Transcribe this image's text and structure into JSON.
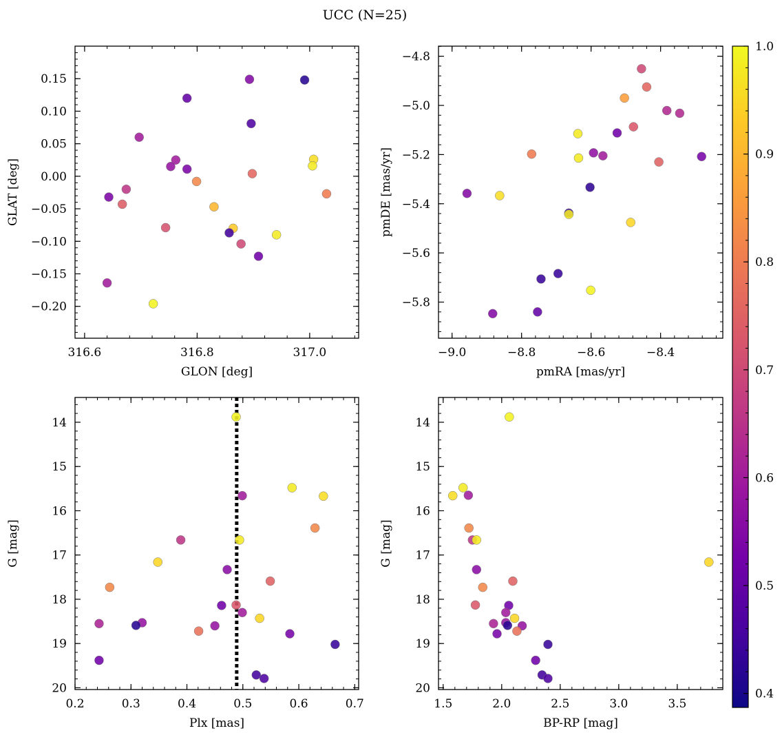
{
  "figure": {
    "title": "UCC (N=25)"
  },
  "colorbar": {
    "vmin": 0.387,
    "vmax": 1.0,
    "ticks": [
      "0.4",
      "0.5",
      "0.6",
      "0.7",
      "0.8",
      "0.9",
      "1.0"
    ],
    "colormap": "plasma",
    "colormap_stops": [
      "#0d0887",
      "#46039f",
      "#7201a8",
      "#9c179e",
      "#bd3786",
      "#d8576b",
      "#ed7953",
      "#fb9f3a",
      "#fdca26",
      "#f0f921"
    ]
  },
  "chart_data": [
    {
      "type": "scatter",
      "xlabel": "GLON [deg]",
      "ylabel": "GLAT [deg]",
      "xlim": [
        316.583,
        317.087
      ],
      "ylim": [
        -0.249,
        0.2
      ],
      "yinvert": false,
      "xticks": [
        316.6,
        316.8,
        317.0
      ],
      "xtick_labels": [
        "316.6",
        "316.8",
        "317.0"
      ],
      "yticks": [
        -0.2,
        -0.15,
        -0.1,
        -0.05,
        0.0,
        0.05,
        0.1,
        0.15
      ],
      "ytick_labels": [
        "−0.20",
        "−0.15",
        "−0.10",
        "−0.05",
        "0.00",
        "0.05",
        "0.10",
        "0.15"
      ],
      "points": [
        {
          "x": 316.893,
          "y": 0.149,
          "c": 0.55
        },
        {
          "x": 316.991,
          "y": 0.148,
          "c": 0.42
        },
        {
          "x": 316.782,
          "y": 0.12,
          "c": 0.5
        },
        {
          "x": 316.896,
          "y": 0.081,
          "c": 0.47
        },
        {
          "x": 316.697,
          "y": 0.06,
          "c": 0.6
        },
        {
          "x": 317.007,
          "y": 0.026,
          "c": 0.96
        },
        {
          "x": 316.762,
          "y": 0.025,
          "c": 0.6
        },
        {
          "x": 317.005,
          "y": 0.016,
          "c": 0.98
        },
        {
          "x": 316.753,
          "y": 0.015,
          "c": 0.58
        },
        {
          "x": 316.782,
          "y": 0.011,
          "c": 0.54
        },
        {
          "x": 316.898,
          "y": 0.004,
          "c": 0.76
        },
        {
          "x": 316.799,
          "y": -0.008,
          "c": 0.82
        },
        {
          "x": 316.674,
          "y": -0.02,
          "c": 0.66
        },
        {
          "x": 317.03,
          "y": -0.027,
          "c": 0.8
        },
        {
          "x": 316.643,
          "y": -0.032,
          "c": 0.54
        },
        {
          "x": 316.667,
          "y": -0.043,
          "c": 0.74
        },
        {
          "x": 316.83,
          "y": -0.047,
          "c": 0.9
        },
        {
          "x": 316.744,
          "y": -0.079,
          "c": 0.72
        },
        {
          "x": 316.864,
          "y": -0.08,
          "c": 0.93
        },
        {
          "x": 316.857,
          "y": -0.087,
          "c": 0.45
        },
        {
          "x": 316.941,
          "y": -0.09,
          "c": 0.98
        },
        {
          "x": 316.878,
          "y": -0.104,
          "c": 0.7
        },
        {
          "x": 316.909,
          "y": -0.123,
          "c": 0.52
        },
        {
          "x": 316.64,
          "y": -0.164,
          "c": 0.6
        },
        {
          "x": 316.722,
          "y": -0.196,
          "c": 0.99
        }
      ]
    },
    {
      "type": "scatter",
      "xlabel": "pmRA [mas/yr]",
      "ylabel": "pmDE [mas/yr]",
      "xlim": [
        -9.039,
        -8.221
      ],
      "ylim": [
        -5.947,
        -4.759
      ],
      "yinvert": false,
      "xticks": [
        -9.0,
        -8.8,
        -8.6,
        -8.4
      ],
      "xtick_labels": [
        "−9.0",
        "−8.8",
        "−8.6",
        "−8.4"
      ],
      "yticks": [
        -5.8,
        -5.6,
        -5.4,
        -5.2,
        -5.0,
        -4.8
      ],
      "ytick_labels": [
        "−5.8",
        "−5.6",
        "−5.4",
        "−5.2",
        "−5.0",
        "−4.8"
      ],
      "points": [
        {
          "x": -8.455,
          "y": -4.851,
          "c": 0.7
        },
        {
          "x": -8.44,
          "y": -4.925,
          "c": 0.76
        },
        {
          "x": -8.504,
          "y": -4.97,
          "c": 0.86
        },
        {
          "x": -8.382,
          "y": -5.021,
          "c": 0.63
        },
        {
          "x": -8.345,
          "y": -5.032,
          "c": 0.63
        },
        {
          "x": -8.478,
          "y": -5.087,
          "c": 0.73
        },
        {
          "x": -8.638,
          "y": -5.115,
          "c": 0.98
        },
        {
          "x": -8.525,
          "y": -5.112,
          "c": 0.52
        },
        {
          "x": -8.593,
          "y": -5.193,
          "c": 0.57
        },
        {
          "x": -8.771,
          "y": -5.198,
          "c": 0.8
        },
        {
          "x": -8.566,
          "y": -5.205,
          "c": 0.6
        },
        {
          "x": -8.282,
          "y": -5.208,
          "c": 0.53
        },
        {
          "x": -8.636,
          "y": -5.214,
          "c": 0.98
        },
        {
          "x": -8.405,
          "y": -5.23,
          "c": 0.75
        },
        {
          "x": -8.603,
          "y": -5.333,
          "c": 0.43
        },
        {
          "x": -8.957,
          "y": -5.358,
          "c": 0.55
        },
        {
          "x": -8.863,
          "y": -5.367,
          "c": 0.96
        },
        {
          "x": -8.664,
          "y": -5.438,
          "c": 0.44
        },
        {
          "x": -8.664,
          "y": -5.443,
          "c": 0.98
        },
        {
          "x": -8.486,
          "y": -5.476,
          "c": 0.95
        },
        {
          "x": -8.695,
          "y": -5.684,
          "c": 0.44
        },
        {
          "x": -8.744,
          "y": -5.706,
          "c": 0.44
        },
        {
          "x": -8.601,
          "y": -5.752,
          "c": 0.99
        },
        {
          "x": -8.754,
          "y": -5.84,
          "c": 0.5
        },
        {
          "x": -8.883,
          "y": -5.847,
          "c": 0.55
        }
      ]
    },
    {
      "type": "scatter",
      "xlabel": "Plx [mas]",
      "ylabel": "G [mag]",
      "xlim": [
        0.2,
        0.707
      ],
      "ylim": [
        20.04,
        13.44
      ],
      "yinvert": true,
      "xticks": [
        0.2,
        0.3,
        0.4,
        0.5,
        0.6,
        0.7
      ],
      "xtick_labels": [
        "0.2",
        "0.3",
        "0.4",
        "0.5",
        "0.6",
        "0.7"
      ],
      "yticks": [
        14,
        15,
        16,
        17,
        18,
        19,
        20
      ],
      "ytick_labels": [
        "14",
        "15",
        "16",
        "17",
        "18",
        "19",
        "20"
      ],
      "vline": {
        "x": 0.489,
        "style": "dotted"
      },
      "points": [
        {
          "x": 0.488,
          "y": 13.88,
          "c": 0.99
        },
        {
          "x": 0.588,
          "y": 15.48,
          "c": 0.98
        },
        {
          "x": 0.499,
          "y": 15.66,
          "c": 0.6
        },
        {
          "x": 0.644,
          "y": 15.67,
          "c": 0.96
        },
        {
          "x": 0.629,
          "y": 16.39,
          "c": 0.82
        },
        {
          "x": 0.389,
          "y": 16.66,
          "c": 0.66
        },
        {
          "x": 0.494,
          "y": 16.66,
          "c": 0.98
        },
        {
          "x": 0.348,
          "y": 17.16,
          "c": 0.95
        },
        {
          "x": 0.472,
          "y": 17.33,
          "c": 0.56
        },
        {
          "x": 0.549,
          "y": 17.59,
          "c": 0.75
        },
        {
          "x": 0.262,
          "y": 17.73,
          "c": 0.82
        },
        {
          "x": 0.462,
          "y": 18.14,
          "c": 0.52
        },
        {
          "x": 0.488,
          "y": 18.13,
          "c": 0.73
        },
        {
          "x": 0.499,
          "y": 18.3,
          "c": 0.6
        },
        {
          "x": 0.53,
          "y": 18.43,
          "c": 0.95
        },
        {
          "x": 0.243,
          "y": 18.55,
          "c": 0.62
        },
        {
          "x": 0.32,
          "y": 18.53,
          "c": 0.58
        },
        {
          "x": 0.309,
          "y": 18.59,
          "c": 0.42
        },
        {
          "x": 0.45,
          "y": 18.6,
          "c": 0.58
        },
        {
          "x": 0.421,
          "y": 18.72,
          "c": 0.78
        },
        {
          "x": 0.584,
          "y": 18.78,
          "c": 0.53
        },
        {
          "x": 0.665,
          "y": 19.02,
          "c": 0.44
        },
        {
          "x": 0.243,
          "y": 19.38,
          "c": 0.52
        },
        {
          "x": 0.524,
          "y": 19.71,
          "c": 0.45
        },
        {
          "x": 0.538,
          "y": 19.79,
          "c": 0.47
        }
      ]
    },
    {
      "type": "scatter",
      "xlabel": "BP-RP [mag]",
      "ylabel": "G [mag]",
      "xlim": [
        1.46,
        3.889
      ],
      "ylim": [
        20.04,
        13.44
      ],
      "yinvert": true,
      "xticks": [
        1.5,
        2.0,
        2.5,
        3.0,
        3.5
      ],
      "xtick_labels": [
        "1.5",
        "2.0",
        "2.5",
        "3.0",
        "3.5"
      ],
      "yticks": [
        14,
        15,
        16,
        17,
        18,
        19,
        20
      ],
      "ytick_labels": [
        "14",
        "15",
        "16",
        "17",
        "18",
        "19",
        "20"
      ],
      "points": [
        {
          "x": 2.065,
          "y": 13.88,
          "c": 0.99
        },
        {
          "x": 1.67,
          "y": 15.48,
          "c": 0.98
        },
        {
          "x": 1.582,
          "y": 15.66,
          "c": 0.96
        },
        {
          "x": 1.715,
          "y": 15.65,
          "c": 0.6
        },
        {
          "x": 1.72,
          "y": 16.39,
          "c": 0.82
        },
        {
          "x": 1.75,
          "y": 16.66,
          "c": 0.66
        },
        {
          "x": 1.785,
          "y": 16.66,
          "c": 0.98
        },
        {
          "x": 3.77,
          "y": 17.16,
          "c": 0.95
        },
        {
          "x": 1.785,
          "y": 17.33,
          "c": 0.56
        },
        {
          "x": 2.095,
          "y": 17.59,
          "c": 0.75
        },
        {
          "x": 1.838,
          "y": 17.73,
          "c": 0.82
        },
        {
          "x": 1.775,
          "y": 18.13,
          "c": 0.73
        },
        {
          "x": 2.06,
          "y": 18.14,
          "c": 0.52
        },
        {
          "x": 2.035,
          "y": 18.3,
          "c": 0.6
        },
        {
          "x": 2.11,
          "y": 18.43,
          "c": 0.95
        },
        {
          "x": 1.93,
          "y": 18.55,
          "c": 0.62
        },
        {
          "x": 2.035,
          "y": 18.53,
          "c": 0.58
        },
        {
          "x": 2.05,
          "y": 18.59,
          "c": 0.42
        },
        {
          "x": 2.175,
          "y": 18.6,
          "c": 0.58
        },
        {
          "x": 2.13,
          "y": 18.72,
          "c": 0.78
        },
        {
          "x": 1.96,
          "y": 18.78,
          "c": 0.53
        },
        {
          "x": 2.395,
          "y": 19.02,
          "c": 0.44
        },
        {
          "x": 2.29,
          "y": 19.38,
          "c": 0.52
        },
        {
          "x": 2.345,
          "y": 19.71,
          "c": 0.45
        },
        {
          "x": 2.395,
          "y": 19.79,
          "c": 0.47
        }
      ]
    }
  ]
}
